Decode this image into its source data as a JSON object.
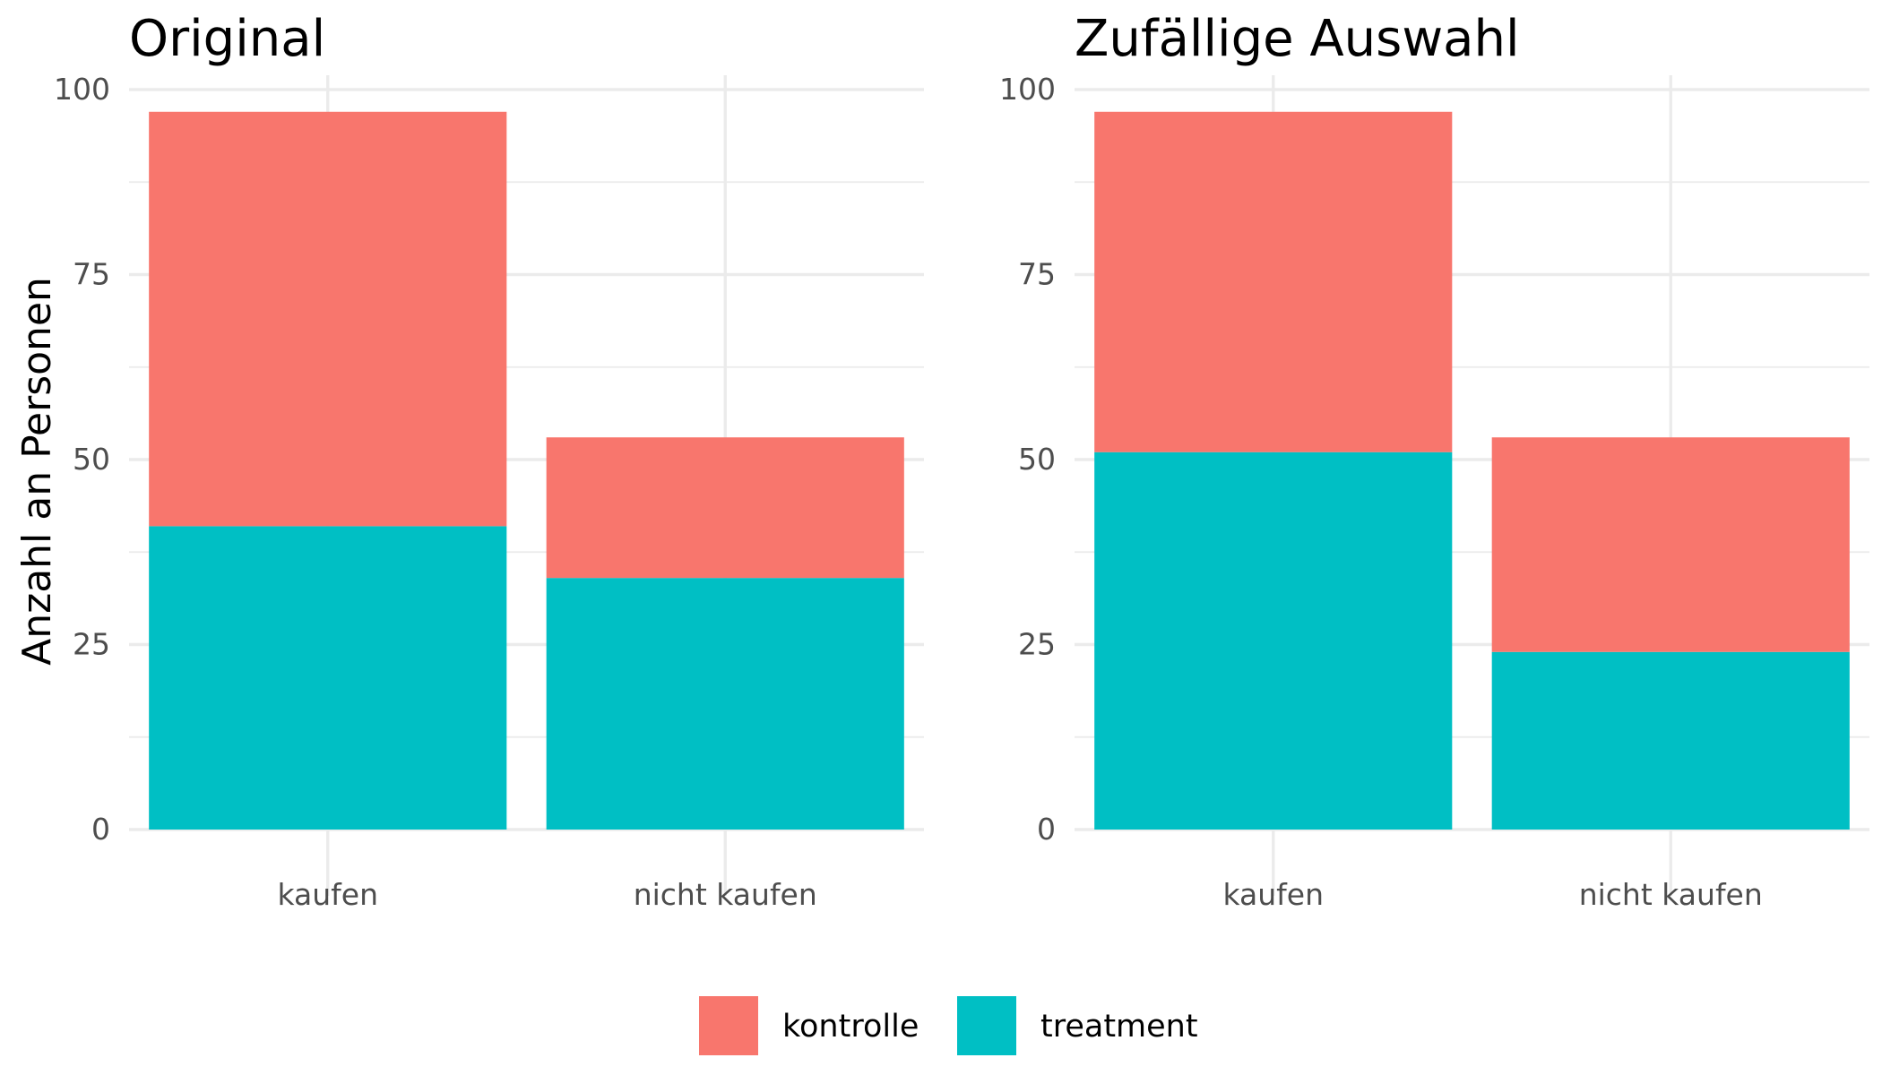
{
  "chart_data": [
    {
      "type": "bar",
      "stacked": true,
      "title": "Original",
      "xlabel": "",
      "ylabel": "Anzahl an Personen",
      "categories": [
        "kaufen",
        "nicht kaufen"
      ],
      "series": [
        {
          "name": "treatment",
          "color": "#00BFC4",
          "values": [
            41,
            34
          ]
        },
        {
          "name": "kontrolle",
          "color": "#F8766D",
          "values": [
            56,
            19
          ]
        }
      ],
      "ylim": [
        0,
        100
      ],
      "yticks": [
        "0",
        "25",
        "50",
        "75",
        "100"
      ],
      "grid": true
    },
    {
      "type": "bar",
      "stacked": true,
      "title": "Zufällige Auswahl",
      "xlabel": "",
      "ylabel": "",
      "categories": [
        "kaufen",
        "nicht kaufen"
      ],
      "series": [
        {
          "name": "treatment",
          "color": "#00BFC4",
          "values": [
            51,
            24
          ]
        },
        {
          "name": "kontrolle",
          "color": "#F8766D",
          "values": [
            46,
            29
          ]
        }
      ],
      "ylim": [
        0,
        100
      ],
      "yticks": [
        "0",
        "25",
        "50",
        "75",
        "100"
      ],
      "grid": true
    }
  ],
  "legend": {
    "position": "bottom",
    "items": [
      {
        "label": "kontrolle",
        "color": "#F8766D"
      },
      {
        "label": "treatment",
        "color": "#00BFC4"
      }
    ]
  }
}
